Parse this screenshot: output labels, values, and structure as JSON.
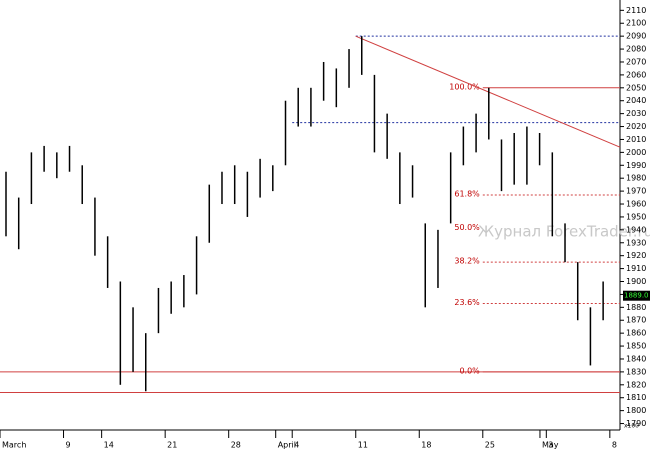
{
  "chart_data": {
    "type": "ohlc",
    "watermark": "Журнал ForexTrader.ru",
    "last_price_label": "1889.0",
    "last_price": 1889,
    "scale_note": "x100",
    "ylim": [
      1785,
      2118
    ],
    "xlim": [
      0,
      48.8
    ],
    "yticks": [
      1790,
      1800,
      1810,
      1820,
      1830,
      1840,
      1850,
      1860,
      1870,
      1880,
      1890,
      1900,
      1910,
      1920,
      1930,
      1940,
      1950,
      1960,
      1970,
      1980,
      1990,
      2000,
      2010,
      2020,
      2030,
      2040,
      2050,
      2060,
      2070,
      2080,
      2090,
      2100,
      2110
    ],
    "xticks": [
      {
        "value": 0,
        "label": "March"
      },
      {
        "value": 5,
        "label": "9"
      },
      {
        "value": 8,
        "label": "14"
      },
      {
        "value": 13,
        "label": "21"
      },
      {
        "value": 18,
        "label": "28"
      },
      {
        "value": 21.7,
        "label": "April"
      },
      {
        "value": 23,
        "label": "4"
      },
      {
        "value": 28,
        "label": "11"
      },
      {
        "value": 33,
        "label": "18"
      },
      {
        "value": 38,
        "label": "25"
      },
      {
        "value": 42.5,
        "label": "May"
      },
      {
        "value": 43,
        "label": "3"
      },
      {
        "value": 48,
        "label": "8"
      }
    ],
    "high": [
      1985,
      1965,
      2000,
      2005,
      2000,
      2005,
      1990,
      1965,
      1935,
      1900,
      1880,
      1860,
      1895,
      1900,
      1905,
      1935,
      1975,
      1985,
      1990,
      1985,
      1995,
      1990,
      2040,
      2050,
      2050,
      2070,
      2065,
      2080,
      2090,
      2060,
      2030,
      2000,
      1990,
      1945,
      1940,
      2000,
      2020,
      2030,
      2050,
      2010,
      2015,
      2020,
      2015,
      2000,
      1945,
      1915,
      1880,
      1900
    ],
    "low": [
      1935,
      1925,
      1960,
      1985,
      1980,
      1985,
      1960,
      1920,
      1895,
      1820,
      1830,
      1815,
      1860,
      1875,
      1880,
      1890,
      1930,
      1960,
      1960,
      1950,
      1965,
      1970,
      1990,
      2020,
      2020,
      2040,
      2035,
      2050,
      2060,
      2000,
      1995,
      1960,
      1965,
      1880,
      1895,
      1945,
      1990,
      2000,
      2010,
      1970,
      1975,
      1975,
      1990,
      1935,
      1915,
      1870,
      1835,
      1870
    ],
    "fib_levels": [
      {
        "label": "100.0%",
        "price": 2050
      },
      {
        "label": "61.8%",
        "price": 1967
      },
      {
        "label": "50.0%",
        "price": 1941
      },
      {
        "label": "38.2%",
        "price": 1915
      },
      {
        "label": "23.6%",
        "price": 1883
      },
      {
        "label": "0.0%",
        "price": 1830
      }
    ],
    "fib_start": 38,
    "support_lines": [
      1830,
      1814
    ],
    "blue_levels": [
      {
        "price": 2090,
        "from": 28
      },
      {
        "price": 2023,
        "from": 23
      }
    ],
    "trendline": {
      "x": [
        28,
        48.8
      ],
      "y": [
        2090,
        2004
      ]
    },
    "bar_color": "#000000",
    "fib_color": "#d04040",
    "blue_color": "#2030a0"
  }
}
